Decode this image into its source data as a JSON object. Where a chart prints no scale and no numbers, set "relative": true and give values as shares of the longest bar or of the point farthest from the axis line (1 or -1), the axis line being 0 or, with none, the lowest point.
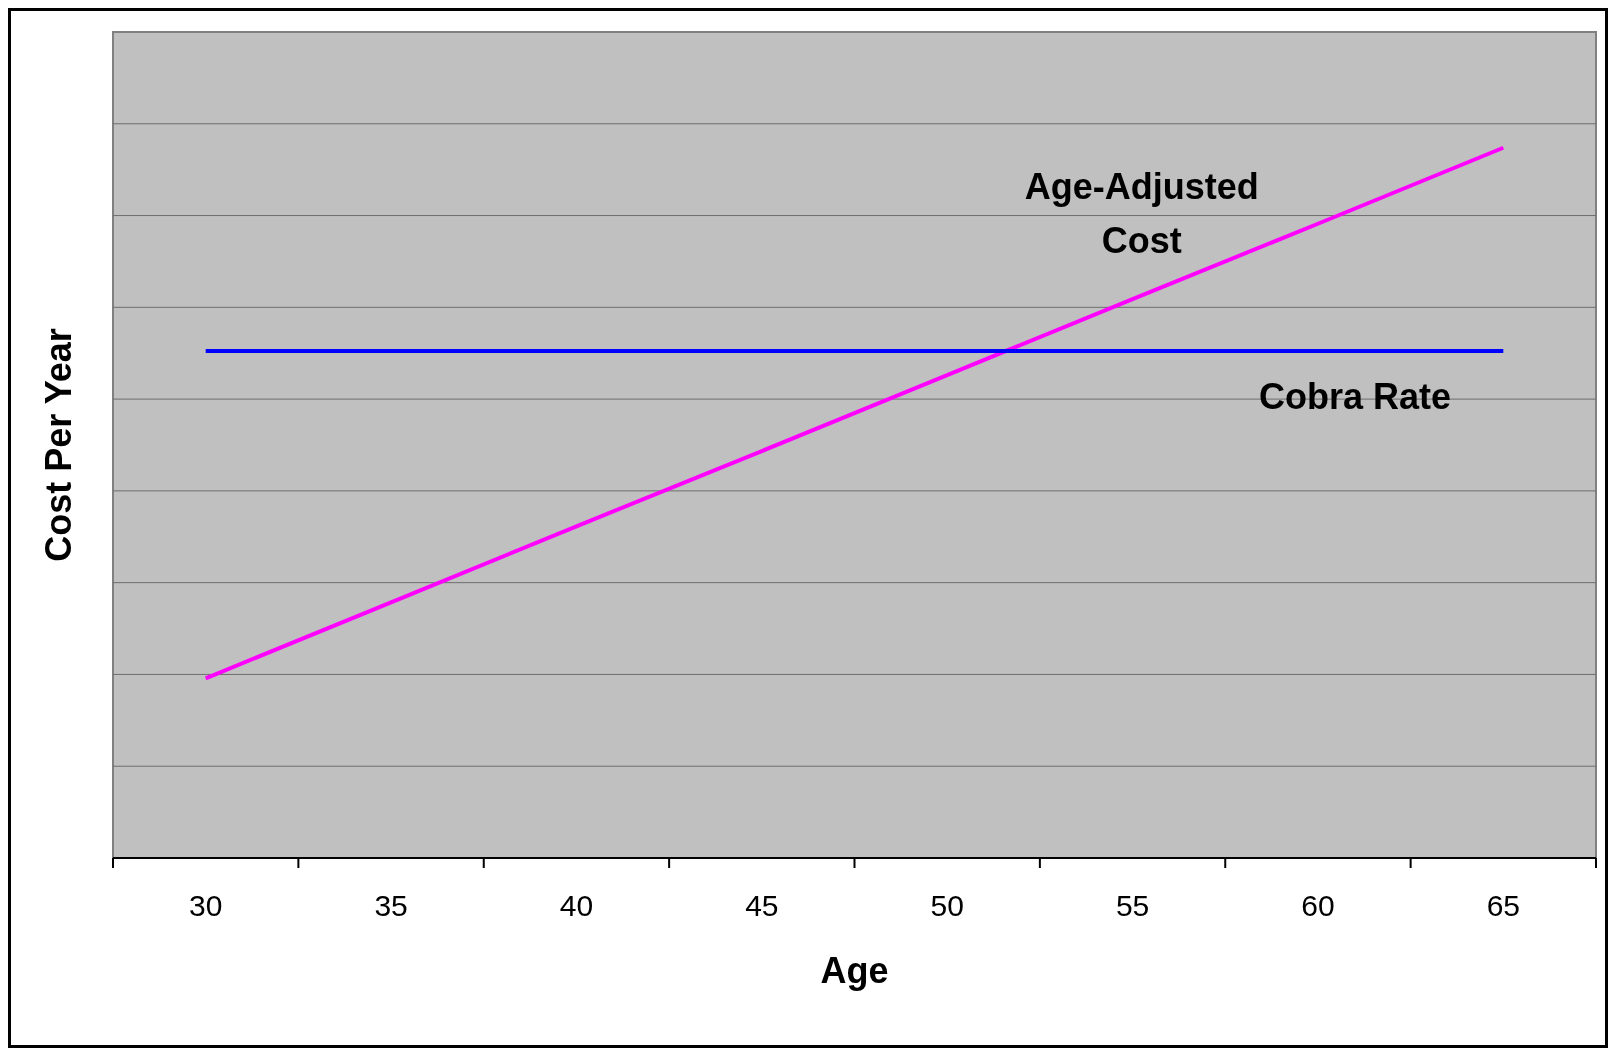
{
  "chart_data": {
    "type": "line",
    "xlabel": "Age",
    "ylabel": "Cost Per Year",
    "relative": true,
    "grid": "y",
    "categories": [
      "30",
      "35",
      "40",
      "45",
      "50",
      "55",
      "60",
      "65"
    ],
    "series": [
      {
        "name": "Age-Adjusted Cost",
        "color": "#ff00ff",
        "values": [
          0.253,
          0.36,
          0.467,
          0.573,
          0.68,
          0.787,
          0.893,
          1.0
        ]
      },
      {
        "name": "Cobra Rate",
        "color": "#0000ff",
        "values": [
          0.714,
          0.714,
          0.714,
          0.714,
          0.714,
          0.714,
          0.714,
          0.714
        ]
      }
    ]
  }
}
